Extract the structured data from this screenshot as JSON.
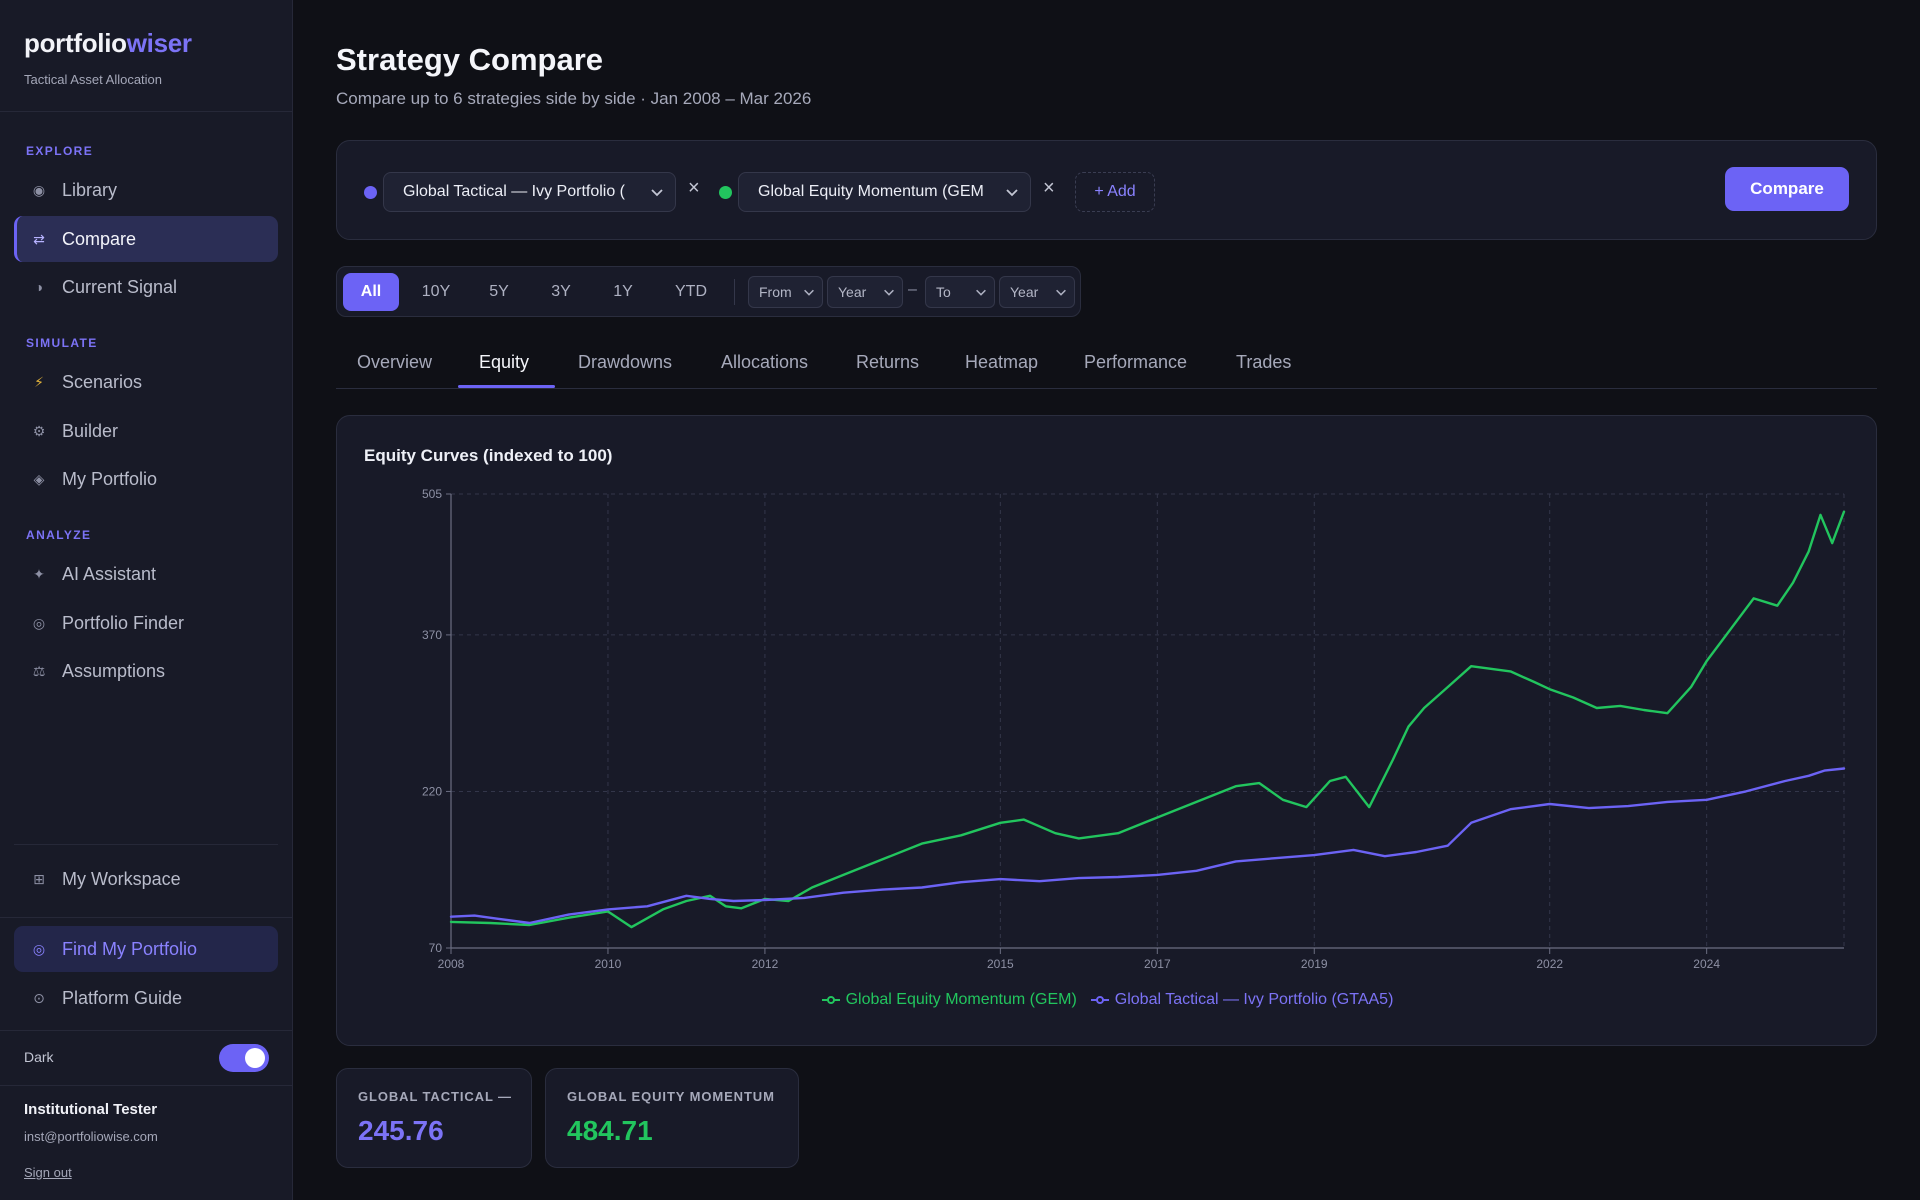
{
  "brand": {
    "name_main": "portfolio",
    "name_accent": "wiser",
    "tagline": "Tactical Asset Allocation"
  },
  "sidebar": {
    "sections": [
      {
        "label": "EXPLORE",
        "items": [
          {
            "label": "Library",
            "icon": "radio-dot-icon",
            "glyph": "◉"
          },
          {
            "label": "Compare",
            "icon": "swap-arrows-icon",
            "glyph": "⇄",
            "active": true
          },
          {
            "label": "Current Signal",
            "icon": "half-circle-icon",
            "glyph": "◑"
          }
        ]
      },
      {
        "label": "SIMULATE",
        "items": [
          {
            "label": "Scenarios",
            "icon": "lightning-icon",
            "glyph": "⚡"
          },
          {
            "label": "Builder",
            "icon": "gear-icon",
            "glyph": "⚙"
          },
          {
            "label": "My Portfolio",
            "icon": "diamond-icon",
            "glyph": "◈"
          }
        ]
      },
      {
        "label": "ANALYZE",
        "items": [
          {
            "label": "AI Assistant",
            "icon": "sparkle-icon",
            "glyph": "✦"
          },
          {
            "label": "Portfolio Finder",
            "icon": "target-icon",
            "glyph": "◎"
          },
          {
            "label": "Assumptions",
            "icon": "scale-icon",
            "glyph": "⚖"
          }
        ]
      }
    ],
    "workspace": {
      "label": "My Workspace",
      "icon": "grid-icon",
      "glyph": "⊞"
    },
    "find": {
      "label": "Find My Portfolio",
      "icon": "target-icon",
      "glyph": "◎"
    },
    "guide": {
      "label": "Platform Guide",
      "icon": "info-circle-icon",
      "glyph": "⊙"
    },
    "theme": {
      "label": "Dark",
      "enabled": true
    },
    "user": {
      "name": "Institutional Tester",
      "email": "inst@portfoliowise.com",
      "signout": "Sign out"
    }
  },
  "page": {
    "title": "Strategy Compare",
    "subtitle": "Compare up to 6 strategies side by side · Jan 2008 – Mar 2026"
  },
  "selectors": {
    "strategies": [
      {
        "label": "Global Tactical — Ivy Portfolio (",
        "color": "#6c63f5"
      },
      {
        "label": "Global Equity Momentum (GEM",
        "color": "#22c55e"
      }
    ],
    "remove_glyph": "×",
    "add_label": "+ Add",
    "compare_label": "Compare"
  },
  "range": {
    "buttons": [
      "All",
      "10Y",
      "5Y",
      "3Y",
      "1Y",
      "YTD"
    ],
    "active": "All",
    "from_label": "From",
    "from_year": "Year",
    "dash": "–",
    "to_label": "To",
    "to_year": "Year"
  },
  "tabs": [
    "Overview",
    "Equity",
    "Drawdowns",
    "Allocations",
    "Returns",
    "Heatmap",
    "Performance",
    "Trades"
  ],
  "active_tab": "Equity",
  "chart_data": {
    "type": "line",
    "title": "Equity Curves (indexed to 100)",
    "xlabel": "",
    "ylabel": "",
    "xlim": [
      2008.0,
      2025.75
    ],
    "ylim": [
      70,
      505
    ],
    "yticks": [
      70,
      220,
      370,
      505
    ],
    "xticks": [
      2008,
      2010,
      2012,
      2015,
      2017,
      2019,
      2022,
      2024
    ],
    "grid": true,
    "legend": "bottom-center",
    "series": [
      {
        "name": "Global Equity Momentum (GEM)",
        "color": "#22c55e",
        "x": [
          2008.0,
          2008.5,
          2009.0,
          2009.5,
          2010.0,
          2010.3,
          2010.7,
          2011.0,
          2011.3,
          2011.5,
          2011.7,
          2012.0,
          2012.3,
          2012.6,
          2013.0,
          2013.5,
          2014.0,
          2014.5,
          2015.0,
          2015.3,
          2015.7,
          2016.0,
          2016.5,
          2017.0,
          2017.5,
          2018.0,
          2018.3,
          2018.6,
          2018.9,
          2019.2,
          2019.4,
          2019.7,
          2020.0,
          2020.2,
          2020.4,
          2020.7,
          2021.0,
          2021.5,
          2021.8,
          2022.0,
          2022.3,
          2022.6,
          2022.9,
          2023.2,
          2023.5,
          2023.8,
          2024.0,
          2024.3,
          2024.6,
          2024.9,
          2025.1,
          2025.3,
          2025.45,
          2025.6,
          2025.75
        ],
        "y": [
          95,
          94,
          92,
          99,
          105,
          90,
          107,
          115,
          120,
          110,
          108,
          117,
          115,
          128,
          140,
          155,
          170,
          178,
          190,
          193,
          180,
          175,
          180,
          195,
          210,
          225,
          228,
          212,
          205,
          230,
          234,
          205,
          250,
          282,
          300,
          320,
          340,
          335,
          325,
          318,
          310,
          300,
          302,
          298,
          295,
          320,
          345,
          375,
          405,
          398,
          420,
          450,
          485,
          458,
          488
        ]
      },
      {
        "name": "Global Tactical — Ivy Portfolio (GTAA5)",
        "color": "#6c63f5",
        "x": [
          2008.0,
          2008.3,
          2008.6,
          2009.0,
          2009.5,
          2010.0,
          2010.5,
          2011.0,
          2011.3,
          2011.6,
          2012.0,
          2012.5,
          2013.0,
          2013.5,
          2014.0,
          2014.5,
          2015.0,
          2015.5,
          2016.0,
          2016.5,
          2017.0,
          2017.5,
          2018.0,
          2018.5,
          2019.0,
          2019.5,
          2019.9,
          2020.3,
          2020.7,
          2021.0,
          2021.5,
          2022.0,
          2022.5,
          2023.0,
          2023.5,
          2024.0,
          2024.5,
          2025.0,
          2025.3,
          2025.5,
          2025.75
        ],
        "y": [
          100,
          101,
          98,
          94,
          102,
          107,
          110,
          120,
          117,
          115,
          116,
          118,
          123,
          126,
          128,
          133,
          136,
          134,
          137,
          138,
          140,
          144,
          153,
          156,
          159,
          164,
          158,
          162,
          168,
          190,
          203,
          208,
          204,
          206,
          210,
          212,
          220,
          230,
          235,
          240,
          242
        ]
      }
    ]
  },
  "stats": [
    {
      "label": "GLOBAL TACTICAL —",
      "value": "245.76",
      "color": "#7c73f6"
    },
    {
      "label": "GLOBAL EQUITY MOMENTUM",
      "value": "484.71",
      "color": "#22c55e"
    }
  ]
}
